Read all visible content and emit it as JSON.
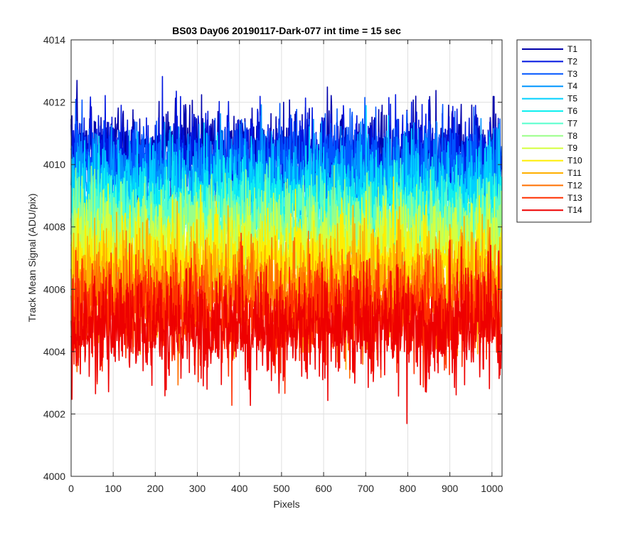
{
  "chart_data": {
    "type": "line",
    "title": "BS03 Day06 20190117-Dark-077 int time = 15 sec",
    "xlabel": "Pixels",
    "ylabel": "Track Mean Signal (ADU/pix)",
    "xlim": [
      0,
      1024
    ],
    "ylim": [
      4000,
      4014
    ],
    "grid": true,
    "legend_position": "outside-top-right",
    "x_ticks": [
      0,
      100,
      200,
      300,
      400,
      500,
      600,
      700,
      800,
      900,
      1000
    ],
    "y_ticks": [
      4000,
      4002,
      4004,
      4006,
      4008,
      4010,
      4012,
      4014
    ],
    "n_points": 1024,
    "series": [
      {
        "name": "T1",
        "color": "#0000AA",
        "mean": 4010.4,
        "noise_sd": 0.75,
        "min": 4007.5,
        "max": 4013.0
      },
      {
        "name": "T2",
        "color": "#0015E0",
        "mean": 4010.2,
        "noise_sd": 0.75,
        "min": 4007.3,
        "max": 4013.2
      },
      {
        "name": "T3",
        "color": "#0055FF",
        "mean": 4009.9,
        "noise_sd": 0.75,
        "min": 4007.0,
        "max": 4012.8
      },
      {
        "name": "T4",
        "color": "#0095FF",
        "mean": 4009.5,
        "noise_sd": 0.75,
        "min": 4006.6,
        "max": 4012.7
      },
      {
        "name": "T5",
        "color": "#00D0FF",
        "mean": 4009.0,
        "noise_sd": 0.75,
        "min": 4006.1,
        "max": 4012.0
      },
      {
        "name": "T6",
        "color": "#10F0F0",
        "mean": 4008.6,
        "noise_sd": 0.75,
        "min": 4005.7,
        "max": 4011.6
      },
      {
        "name": "T7",
        "color": "#55FFCC",
        "mean": 4008.2,
        "noise_sd": 0.75,
        "min": 4005.3,
        "max": 4011.5
      },
      {
        "name": "T8",
        "color": "#99FF88",
        "mean": 4007.8,
        "noise_sd": 0.75,
        "min": 4004.9,
        "max": 4011.0
      },
      {
        "name": "T9",
        "color": "#D5FF40",
        "mean": 4007.3,
        "noise_sd": 0.75,
        "min": 4004.4,
        "max": 4010.5
      },
      {
        "name": "T10",
        "color": "#FFEE00",
        "mean": 4006.8,
        "noise_sd": 0.75,
        "min": 4003.8,
        "max": 4010.0
      },
      {
        "name": "T11",
        "color": "#FFB000",
        "mean": 4006.2,
        "noise_sd": 0.8,
        "min": 4001.9,
        "max": 4009.6
      },
      {
        "name": "T12",
        "color": "#FF7000",
        "mean": 4005.7,
        "noise_sd": 0.8,
        "min": 4002.5,
        "max": 4009.0
      },
      {
        "name": "T13",
        "color": "#FF3000",
        "mean": 4005.2,
        "noise_sd": 0.8,
        "min": 4002.0,
        "max": 4008.5
      },
      {
        "name": "T14",
        "color": "#EE0000",
        "mean": 4004.8,
        "noise_sd": 0.85,
        "min": 4000.4,
        "max": 4008.2
      }
    ]
  }
}
